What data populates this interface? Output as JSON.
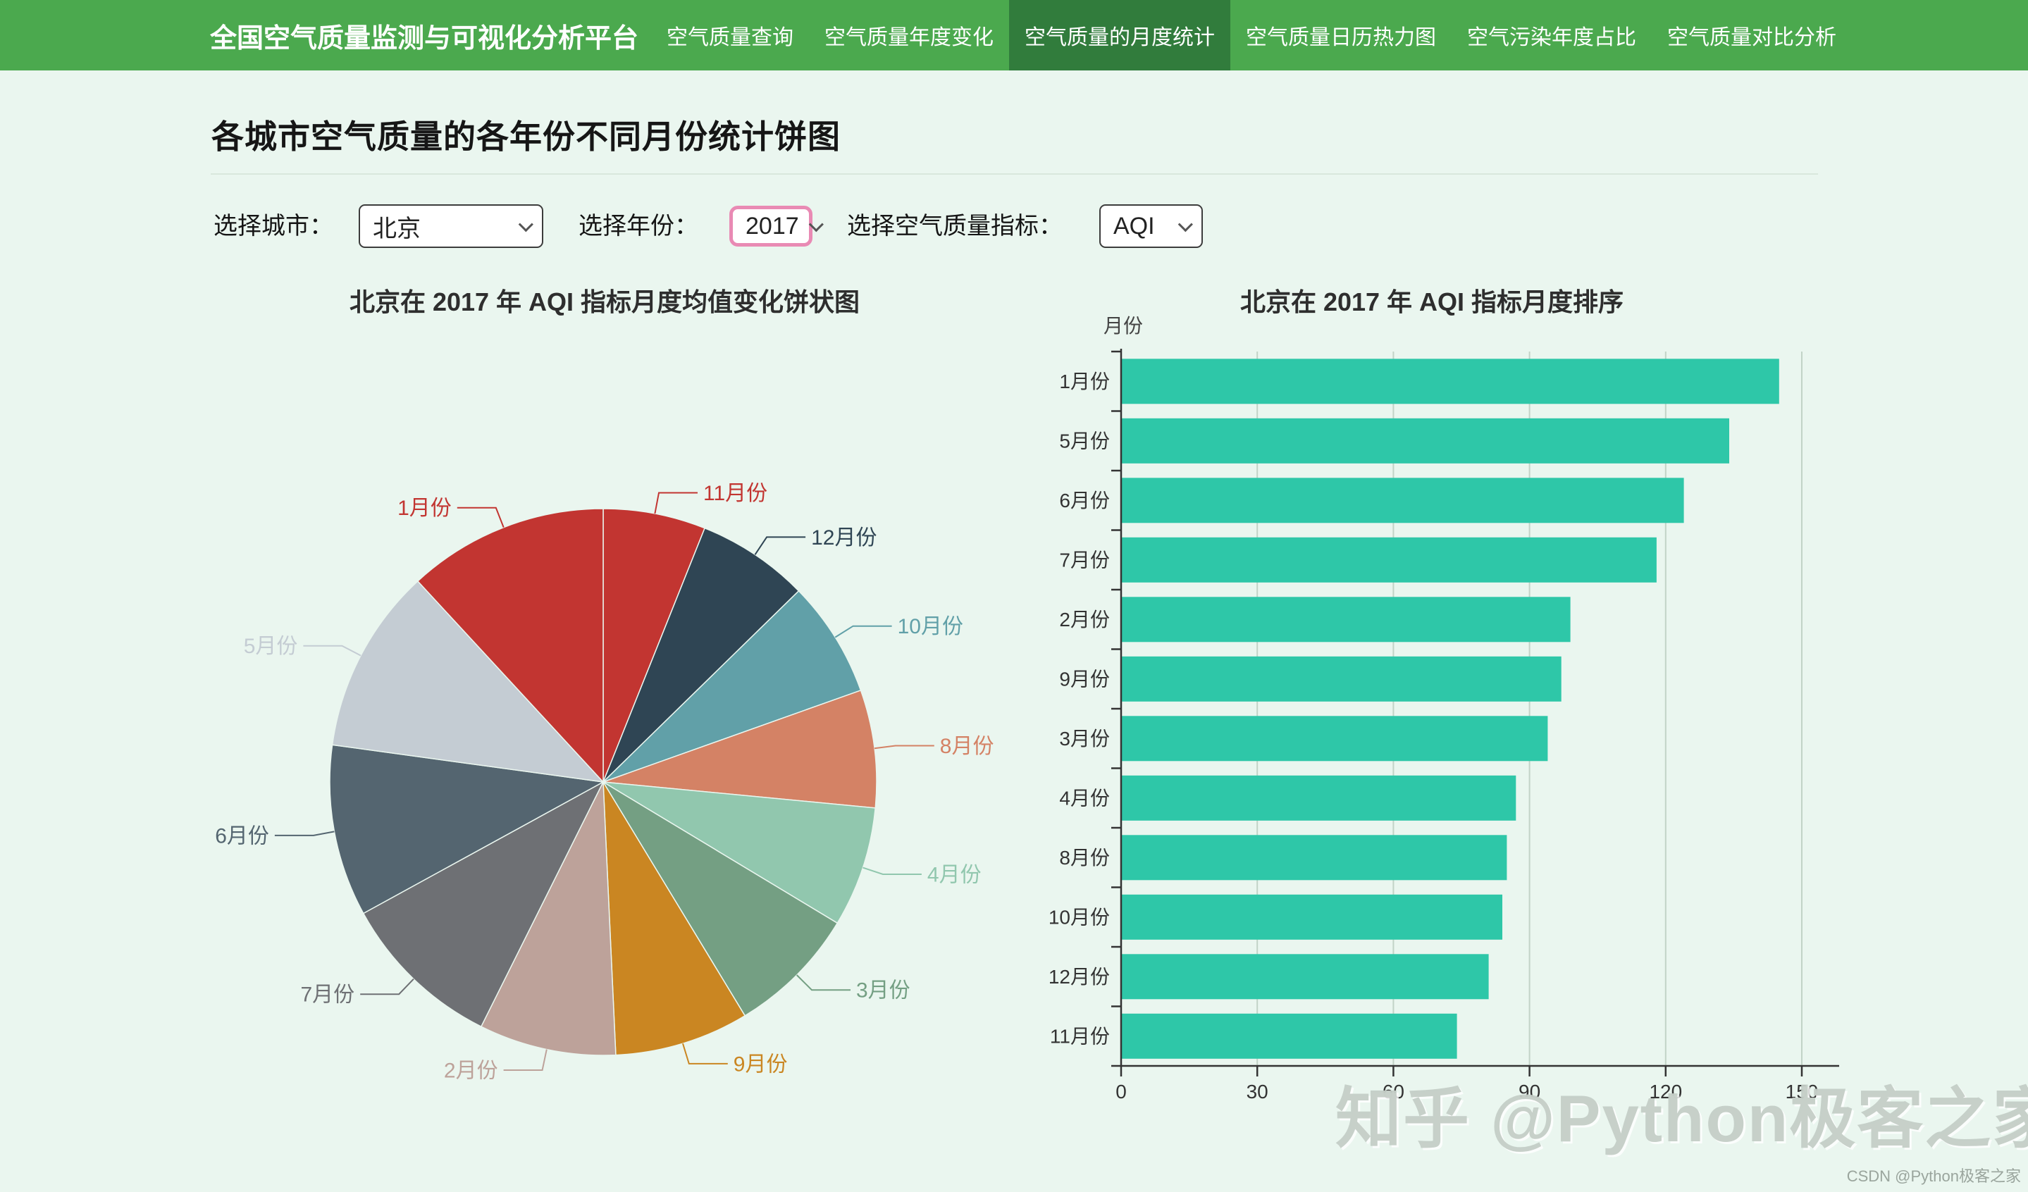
{
  "nav": {
    "brand": "全国空气质量监测与可视化分析平台",
    "items": [
      {
        "label": "空气质量查询",
        "active": false
      },
      {
        "label": "空气质量年度变化",
        "active": false
      },
      {
        "label": "空气质量的月度统计",
        "active": true
      },
      {
        "label": "空气质量日历热力图",
        "active": false
      },
      {
        "label": "空气污染年度占比",
        "active": false
      },
      {
        "label": "空气质量对比分析",
        "active": false
      }
    ],
    "background": "#4BA94E",
    "active_background": "#317C3C"
  },
  "header": {
    "title": "各城市空气质量的各年份不同月份统计饼图"
  },
  "filters": {
    "city": {
      "label": "选择城市：",
      "value": "北京"
    },
    "year": {
      "label": "选择年份：",
      "value": "2017"
    },
    "metric": {
      "label": "选择空气质量指标：",
      "value": "AQI"
    }
  },
  "watermark": {
    "main": "知乎 @Python极客之家",
    "corner": "CSDN @Python极客之家"
  },
  "chart_data": [
    {
      "type": "pie",
      "title": "北京在 2017 年 AQI 指标月度均值变化饼状图",
      "legend_position": "none",
      "start_angle": 90,
      "clockwise": true,
      "slices": [
        {
          "name": "11月份",
          "value": 74,
          "color": "#c23531"
        },
        {
          "name": "12月份",
          "value": 81,
          "color": "#2f4554"
        },
        {
          "name": "10月份",
          "value": 84,
          "color": "#61a0a8"
        },
        {
          "name": "8月份",
          "value": 85,
          "color": "#d48265"
        },
        {
          "name": "4月份",
          "value": 87,
          "color": "#91c7ae"
        },
        {
          "name": "3月份",
          "value": 94,
          "color": "#749f83"
        },
        {
          "name": "9月份",
          "value": 97,
          "color": "#ca8622"
        },
        {
          "name": "2月份",
          "value": 99,
          "color": "#bda29a"
        },
        {
          "name": "7月份",
          "value": 118,
          "color": "#6e7074"
        },
        {
          "name": "6月份",
          "value": 124,
          "color": "#546570"
        },
        {
          "name": "5月份",
          "value": 134,
          "color": "#c4ccd3"
        },
        {
          "name": "1月份",
          "value": 145,
          "color": "#c23531"
        }
      ]
    },
    {
      "type": "bar",
      "orientation": "horizontal",
      "title": "北京在 2017 年 AQI 指标月度排序",
      "ylabel": "月份",
      "xlabel": "",
      "xlim": [
        0,
        150
      ],
      "x_ticks": [
        0,
        30,
        60,
        90,
        120,
        150
      ],
      "grid": true,
      "bar_color": "#2EC7A8",
      "categories": [
        "1月份",
        "5月份",
        "6月份",
        "7月份",
        "2月份",
        "9月份",
        "3月份",
        "4月份",
        "8月份",
        "10月份",
        "12月份",
        "11月份"
      ],
      "values": [
        145,
        134,
        124,
        118,
        99,
        97,
        94,
        87,
        85,
        84,
        81,
        74
      ]
    }
  ]
}
